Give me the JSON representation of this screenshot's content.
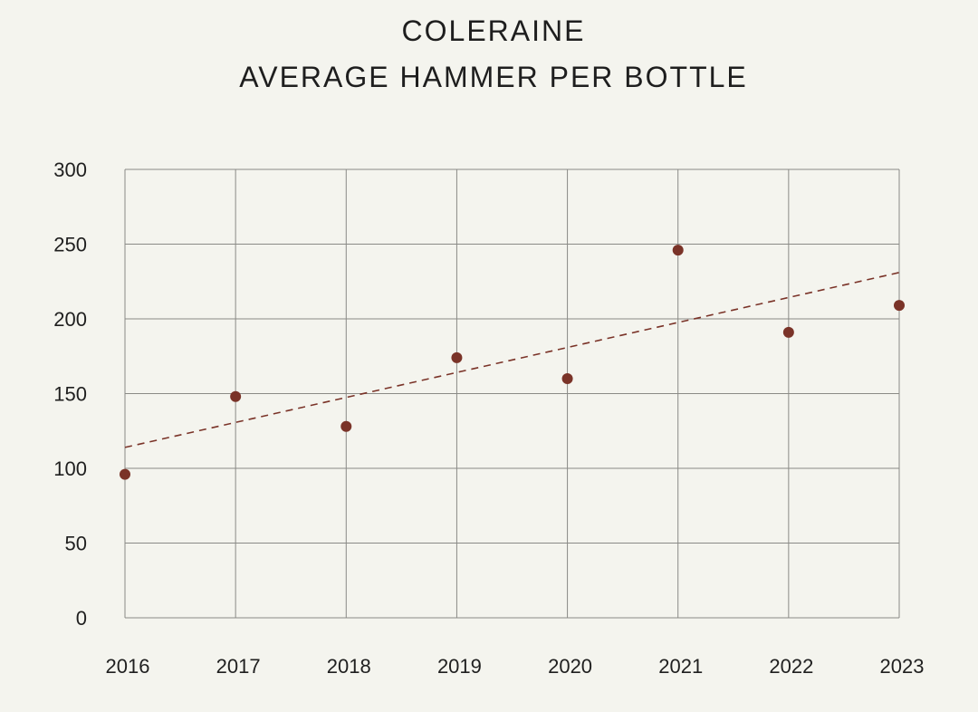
{
  "chart_data": {
    "type": "scatter",
    "title": "COLERAINE",
    "subtitle": "AVERAGE HAMMER PER BOTTLE",
    "xlabel": "",
    "ylabel": "",
    "categories": [
      "2016",
      "2017",
      "2018",
      "2019",
      "2020",
      "2021",
      "2022",
      "2023"
    ],
    "series": [
      {
        "values": [
          96,
          148,
          128,
          174,
          160,
          246,
          191,
          209
        ],
        "color": "#7a3328"
      }
    ],
    "trendline": {
      "style": "dashed",
      "color": "#7a3328",
      "start": [
        2016,
        114
      ],
      "end": [
        2023,
        231
      ]
    },
    "ylim": [
      0,
      300
    ],
    "yticks": [
      0,
      50,
      100,
      150,
      200,
      250,
      300
    ],
    "grid": true,
    "legend": "none"
  }
}
